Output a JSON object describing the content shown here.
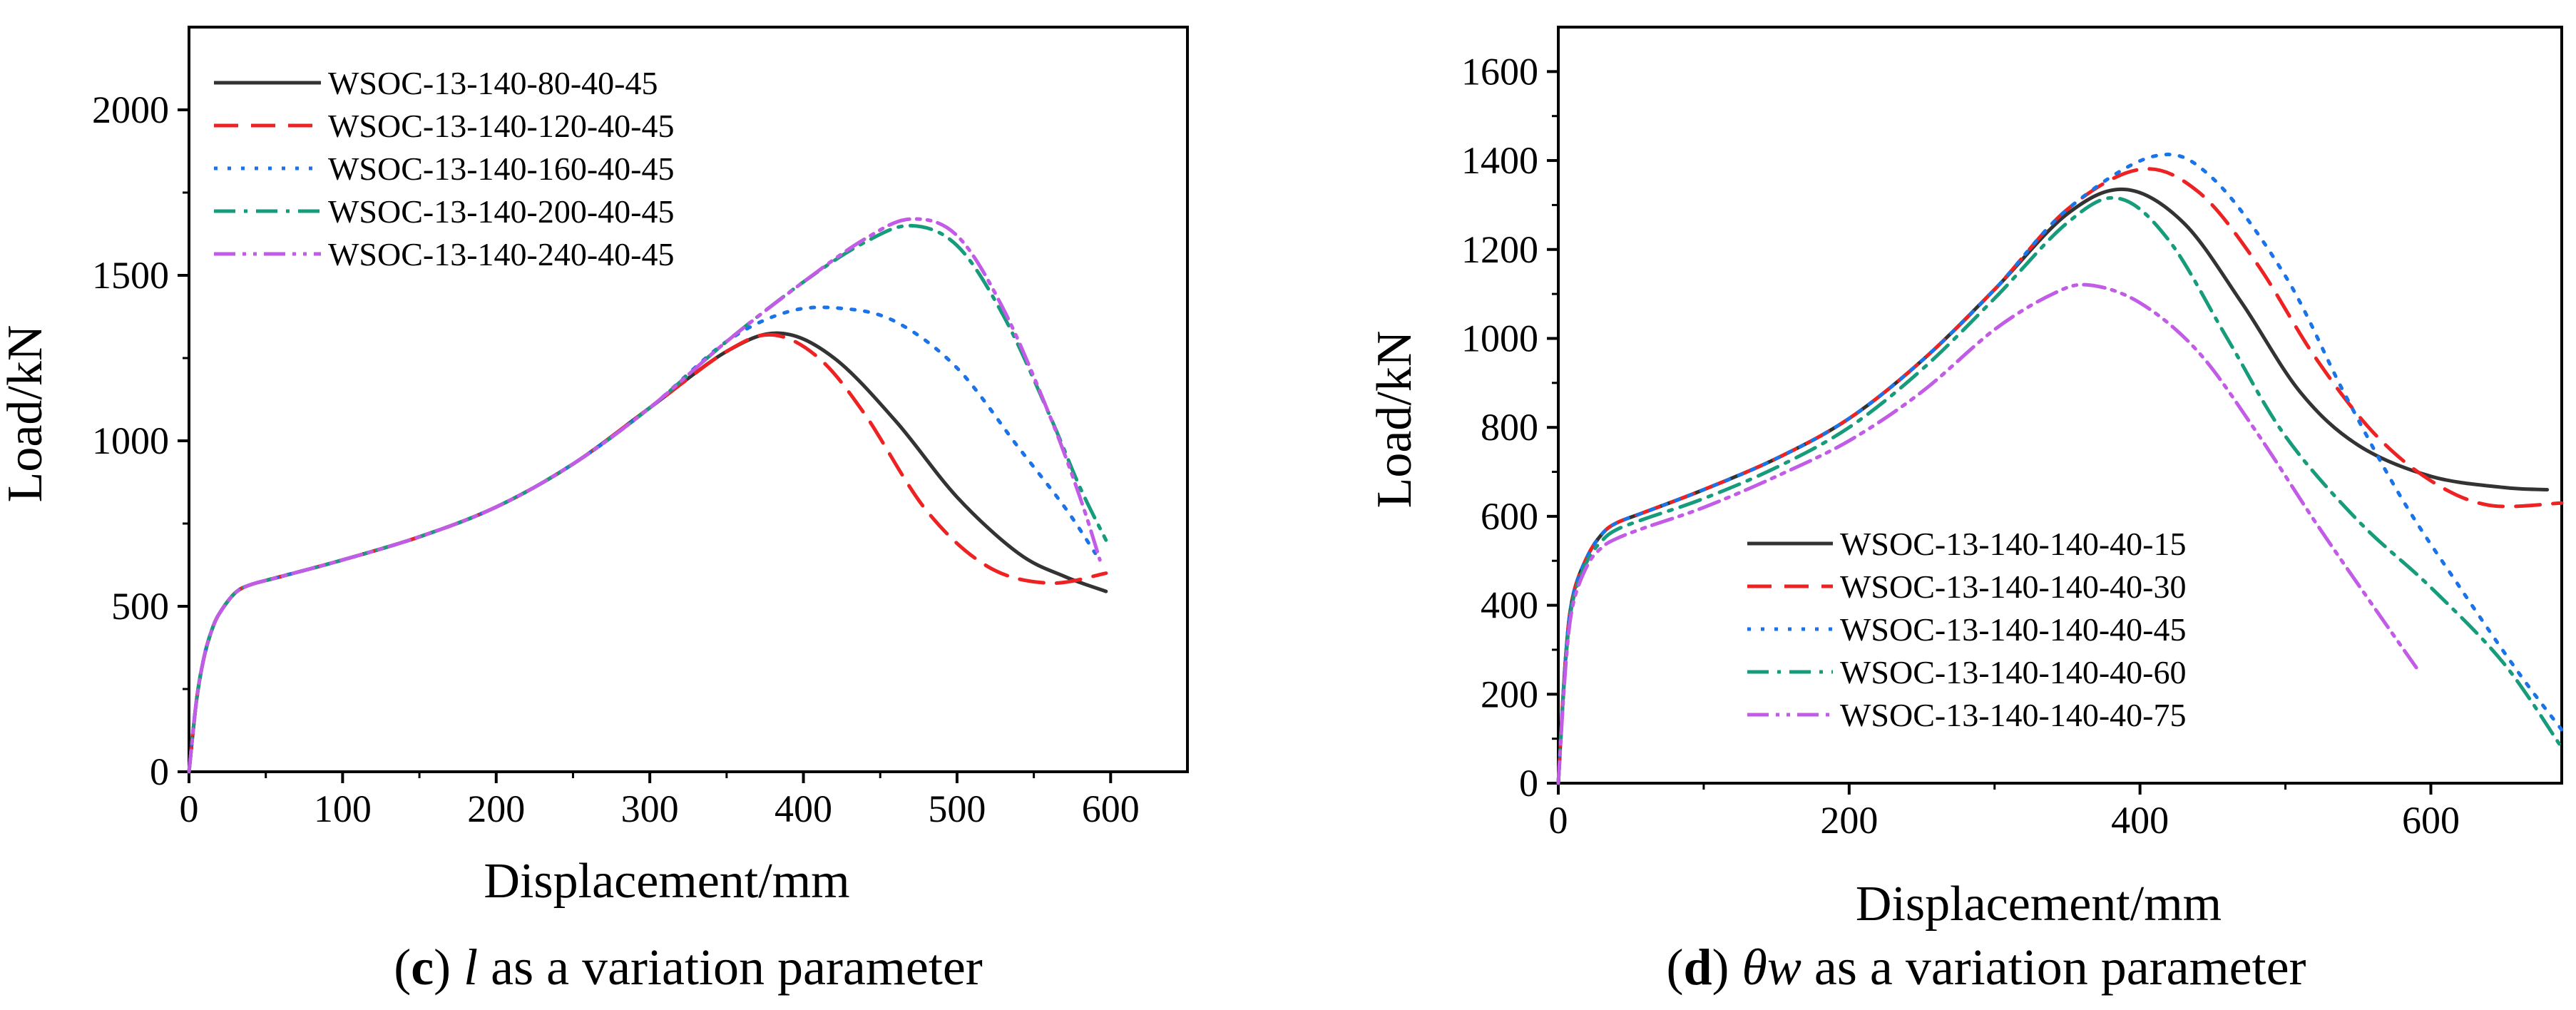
{
  "chart_data": [
    {
      "type": "line",
      "panel": "c",
      "caption": {
        "open": "(",
        "letter": "c",
        "close": ")",
        "var": "l",
        "rest": " as a variation parameter"
      },
      "xlabel": "Displacement/mm",
      "ylabel": "Load/kN",
      "xlim": [
        0,
        650
      ],
      "ylim": [
        0,
        2250
      ],
      "xticks": [
        0,
        100,
        200,
        300,
        400,
        500,
        600
      ],
      "yticks": [
        0,
        500,
        1000,
        1500,
        2000
      ],
      "legend_position": "top-left",
      "series": [
        {
          "name": "WSOC-13-140-80-40-45",
          "color": "#333333",
          "dash": "solid",
          "x": [
            0,
            5,
            10,
            15,
            20,
            30,
            40,
            60,
            100,
            150,
            200,
            250,
            300,
            350,
            385,
            420,
            460,
            500,
            540,
            570,
            597
          ],
          "y": [
            0,
            220,
            350,
            430,
            480,
            540,
            565,
            590,
            640,
            710,
            800,
            930,
            1100,
            1270,
            1325,
            1250,
            1060,
            830,
            660,
            590,
            545
          ]
        },
        {
          "name": "WSOC-13-140-120-40-45",
          "color": "#ee2222",
          "dash": "dashed",
          "x": [
            0,
            5,
            10,
            15,
            20,
            30,
            40,
            60,
            100,
            150,
            200,
            250,
            300,
            350,
            380,
            410,
            440,
            480,
            520,
            560,
            597
          ],
          "y": [
            0,
            220,
            350,
            430,
            480,
            540,
            565,
            590,
            640,
            710,
            800,
            930,
            1100,
            1270,
            1320,
            1250,
            1080,
            790,
            620,
            570,
            600
          ]
        },
        {
          "name": "WSOC-13-140-160-40-45",
          "color": "#1a73e8",
          "dash": "dotted",
          "x": [
            0,
            5,
            10,
            15,
            20,
            30,
            40,
            60,
            100,
            150,
            200,
            250,
            300,
            350,
            390,
            425,
            460,
            500,
            540,
            570,
            590
          ],
          "y": [
            0,
            220,
            350,
            430,
            480,
            540,
            565,
            590,
            640,
            710,
            800,
            930,
            1100,
            1300,
            1390,
            1400,
            1360,
            1220,
            980,
            800,
            660
          ]
        },
        {
          "name": "WSOC-13-140-200-40-45",
          "color": "#169c7a",
          "dash": "dashdot",
          "x": [
            0,
            5,
            10,
            15,
            20,
            30,
            40,
            60,
            100,
            150,
            200,
            250,
            300,
            350,
            400,
            440,
            470,
            500,
            530,
            560,
            580,
            597
          ],
          "y": [
            0,
            220,
            350,
            430,
            480,
            540,
            565,
            590,
            640,
            710,
            800,
            930,
            1100,
            1300,
            1480,
            1600,
            1650,
            1590,
            1380,
            1080,
            860,
            700
          ]
        },
        {
          "name": "WSOC-13-140-240-40-45",
          "color": "#c25be6",
          "dash": "dashdotdot",
          "x": [
            0,
            5,
            10,
            15,
            20,
            30,
            40,
            60,
            100,
            150,
            200,
            250,
            300,
            350,
            400,
            440,
            470,
            500,
            530,
            560,
            580,
            593
          ],
          "y": [
            0,
            220,
            350,
            430,
            480,
            540,
            565,
            590,
            640,
            710,
            800,
            930,
            1100,
            1300,
            1480,
            1610,
            1670,
            1620,
            1400,
            1080,
            830,
            640
          ]
        }
      ]
    },
    {
      "type": "line",
      "panel": "d",
      "caption": {
        "open": "(",
        "letter": "d",
        "close": ")",
        "var": "θw",
        "rest": " as a variation parameter"
      },
      "xlabel": "Displacement/mm",
      "ylabel": "Load/kN",
      "xlim": [
        0,
        690
      ],
      "ylim": [
        0,
        1700
      ],
      "xticks": [
        0,
        200,
        400,
        600
      ],
      "yticks": [
        0,
        200,
        400,
        600,
        800,
        1000,
        1200,
        1400,
        1600
      ],
      "legend_position": "bottom-center",
      "series": [
        {
          "name": "WSOC-13-140-140-40-15",
          "color": "#333333",
          "dash": "solid",
          "x": [
            0,
            5,
            10,
            20,
            30,
            40,
            60,
            100,
            150,
            200,
            250,
            300,
            350,
            390,
            430,
            470,
            510,
            550,
            600,
            650,
            680
          ],
          "y": [
            0,
            280,
            420,
            510,
            560,
            585,
            610,
            660,
            730,
            820,
            950,
            1110,
            1280,
            1335,
            1260,
            1080,
            880,
            760,
            690,
            665,
            660
          ]
        },
        {
          "name": "WSOC-13-140-140-40-30",
          "color": "#ee2222",
          "dash": "dashed",
          "x": [
            0,
            5,
            10,
            20,
            30,
            40,
            60,
            100,
            150,
            200,
            250,
            300,
            350,
            400,
            440,
            480,
            520,
            560,
            600,
            640,
            690
          ],
          "y": [
            0,
            280,
            420,
            510,
            560,
            585,
            610,
            660,
            730,
            820,
            950,
            1110,
            1290,
            1380,
            1330,
            1170,
            960,
            790,
            680,
            625,
            630
          ]
        },
        {
          "name": "WSOC-13-140-140-40-45",
          "color": "#1a73e8",
          "dash": "dotted",
          "x": [
            0,
            5,
            10,
            20,
            30,
            40,
            60,
            100,
            150,
            200,
            250,
            300,
            350,
            410,
            450,
            500,
            540,
            580,
            620,
            660,
            690
          ],
          "y": [
            0,
            280,
            420,
            510,
            560,
            585,
            610,
            660,
            730,
            820,
            950,
            1110,
            1290,
            1410,
            1360,
            1140,
            880,
            640,
            440,
            250,
            120
          ]
        },
        {
          "name": "WSOC-13-140-140-40-60",
          "color": "#169c7a",
          "dash": "dashdot",
          "x": [
            0,
            5,
            10,
            20,
            30,
            40,
            60,
            100,
            150,
            200,
            250,
            300,
            350,
            385,
            420,
            460,
            500,
            550,
            600,
            650,
            690
          ],
          "y": [
            0,
            270,
            410,
            500,
            545,
            570,
            595,
            640,
            710,
            800,
            930,
            1090,
            1260,
            1315,
            1220,
            1000,
            780,
            590,
            440,
            270,
            80
          ]
        },
        {
          "name": "WSOC-13-140-140-40-75",
          "color": "#c25be6",
          "dash": "dashdotdot",
          "x": [
            0,
            5,
            10,
            20,
            30,
            40,
            60,
            100,
            150,
            200,
            250,
            300,
            340,
            365,
            400,
            440,
            480,
            520,
            560,
            590
          ],
          "y": [
            0,
            260,
            400,
            490,
            530,
            550,
            575,
            620,
            690,
            770,
            880,
            1020,
            1100,
            1120,
            1080,
            970,
            790,
            590,
            400,
            260
          ]
        }
      ]
    }
  ]
}
